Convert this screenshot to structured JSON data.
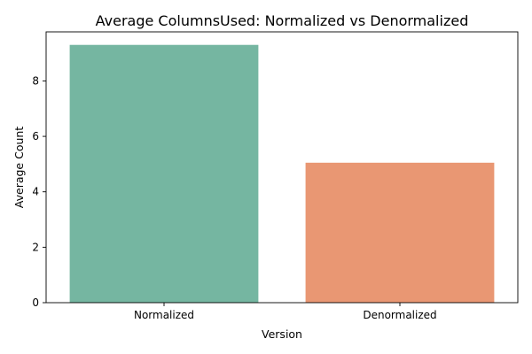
{
  "chart_data": {
    "type": "bar",
    "title": "Average ColumnsUsed: Normalized vs Denormalized",
    "xlabel": "Version",
    "ylabel": "Average Count",
    "categories": [
      "Normalized",
      "Denormalized"
    ],
    "values": [
      9.3,
      5.05
    ],
    "colors": [
      "#75b6a1",
      "#e99773"
    ],
    "ylim": [
      0,
      9.77
    ],
    "yticks": [
      0,
      2,
      4,
      6,
      8
    ],
    "grid": false,
    "legend": "none"
  }
}
